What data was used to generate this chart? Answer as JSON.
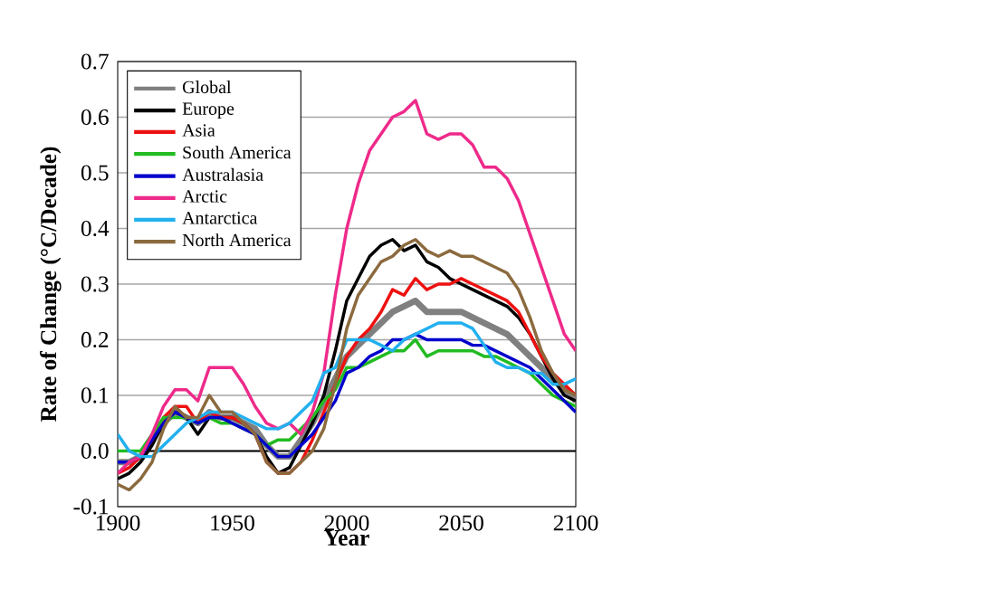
{
  "chart_data": {
    "type": "line",
    "xlabel": "Year",
    "ylabel": "Rate of Change (°C/Decade)",
    "x": [
      1900,
      1905,
      1910,
      1915,
      1920,
      1925,
      1930,
      1935,
      1940,
      1945,
      1950,
      1955,
      1960,
      1965,
      1970,
      1975,
      1980,
      1985,
      1990,
      1995,
      2000,
      2005,
      2010,
      2015,
      2020,
      2025,
      2030,
      2035,
      2040,
      2045,
      2050,
      2055,
      2060,
      2065,
      2070,
      2075,
      2080,
      2085,
      2090,
      2095,
      2100
    ],
    "series": [
      {
        "name": "Global",
        "color": "#808080",
        "values": [
          -0.02,
          -0.02,
          -0.01,
          0.02,
          0.05,
          0.07,
          0.06,
          0.05,
          0.07,
          0.06,
          0.06,
          0.05,
          0.04,
          0.01,
          -0.01,
          -0.01,
          0.02,
          0.05,
          0.09,
          0.13,
          0.17,
          0.19,
          0.21,
          0.23,
          0.25,
          0.26,
          0.27,
          0.25,
          0.25,
          0.25,
          0.25,
          0.24,
          0.23,
          0.22,
          0.21,
          0.19,
          0.17,
          0.15,
          0.13,
          0.11,
          0.09
        ]
      },
      {
        "name": "Europe",
        "color": "#000000",
        "values": [
          -0.05,
          -0.04,
          -0.02,
          0.01,
          0.05,
          0.07,
          0.06,
          0.03,
          0.06,
          0.06,
          0.06,
          0.05,
          0.03,
          -0.01,
          -0.04,
          -0.03,
          0.01,
          0.05,
          0.1,
          0.18,
          0.27,
          0.31,
          0.35,
          0.37,
          0.38,
          0.36,
          0.37,
          0.34,
          0.33,
          0.31,
          0.3,
          0.29,
          0.28,
          0.27,
          0.26,
          0.24,
          0.21,
          0.17,
          0.13,
          0.1,
          0.09
        ]
      },
      {
        "name": "Asia",
        "color": "#ee1111",
        "values": [
          -0.04,
          -0.03,
          -0.01,
          0.02,
          0.06,
          0.08,
          0.08,
          0.05,
          0.07,
          0.06,
          0.06,
          0.05,
          0.03,
          -0.02,
          -0.04,
          -0.04,
          -0.02,
          0.02,
          0.07,
          0.12,
          0.17,
          0.2,
          0.22,
          0.25,
          0.29,
          0.28,
          0.31,
          0.29,
          0.3,
          0.3,
          0.31,
          0.3,
          0.29,
          0.28,
          0.27,
          0.25,
          0.21,
          0.17,
          0.14,
          0.12,
          0.1
        ]
      },
      {
        "name": "South America",
        "color": "#22bb22",
        "values": [
          0.0,
          0.0,
          0.0,
          0.03,
          0.06,
          0.06,
          0.06,
          0.05,
          0.06,
          0.05,
          0.05,
          0.04,
          0.03,
          0.01,
          0.02,
          0.02,
          0.04,
          0.06,
          0.09,
          0.11,
          0.15,
          0.15,
          0.16,
          0.17,
          0.18,
          0.18,
          0.2,
          0.17,
          0.18,
          0.18,
          0.18,
          0.18,
          0.17,
          0.17,
          0.16,
          0.15,
          0.14,
          0.12,
          0.1,
          0.09,
          0.08
        ]
      },
      {
        "name": "Australasia",
        "color": "#0000cc",
        "values": [
          -0.02,
          -0.02,
          -0.01,
          0.02,
          0.05,
          0.07,
          0.06,
          0.05,
          0.06,
          0.06,
          0.05,
          0.04,
          0.03,
          0.01,
          -0.01,
          -0.01,
          0.01,
          0.03,
          0.06,
          0.09,
          0.14,
          0.15,
          0.17,
          0.18,
          0.2,
          0.2,
          0.21,
          0.2,
          0.2,
          0.2,
          0.2,
          0.19,
          0.19,
          0.18,
          0.17,
          0.16,
          0.15,
          0.13,
          0.11,
          0.09,
          0.07
        ]
      },
      {
        "name": "Arctic",
        "color": "#ee2a8a",
        "values": [
          -0.04,
          -0.02,
          -0.01,
          0.03,
          0.08,
          0.11,
          0.11,
          0.09,
          0.15,
          0.15,
          0.15,
          0.12,
          0.08,
          0.05,
          0.04,
          0.05,
          0.03,
          0.07,
          0.14,
          0.28,
          0.4,
          0.48,
          0.54,
          0.57,
          0.6,
          0.61,
          0.63,
          0.57,
          0.56,
          0.57,
          0.57,
          0.55,
          0.51,
          0.51,
          0.49,
          0.45,
          0.39,
          0.33,
          0.27,
          0.21,
          0.18
        ]
      },
      {
        "name": "Antarctica",
        "color": "#22b0ee",
        "values": [
          0.03,
          0.0,
          -0.01,
          -0.01,
          0.01,
          0.03,
          0.05,
          0.06,
          0.07,
          0.07,
          0.07,
          0.06,
          0.05,
          0.04,
          0.04,
          0.05,
          0.07,
          0.09,
          0.14,
          0.15,
          0.2,
          0.2,
          0.2,
          0.19,
          0.18,
          0.2,
          0.21,
          0.22,
          0.23,
          0.23,
          0.23,
          0.22,
          0.19,
          0.16,
          0.15,
          0.15,
          0.14,
          0.14,
          0.12,
          0.12,
          0.13
        ]
      },
      {
        "name": "North America",
        "color": "#8b6a3e",
        "values": [
          -0.06,
          -0.07,
          -0.05,
          -0.02,
          0.04,
          0.08,
          0.06,
          0.06,
          0.1,
          0.07,
          0.07,
          0.05,
          0.03,
          -0.02,
          -0.04,
          -0.04,
          -0.02,
          0.0,
          0.04,
          0.12,
          0.22,
          0.28,
          0.31,
          0.34,
          0.35,
          0.37,
          0.38,
          0.36,
          0.35,
          0.36,
          0.35,
          0.35,
          0.34,
          0.33,
          0.32,
          0.29,
          0.24,
          0.18,
          0.14,
          0.11,
          0.1
        ]
      }
    ],
    "xlim": [
      1900,
      2100
    ],
    "xticks": [
      1900,
      1950,
      2000,
      2050,
      2100
    ],
    "ylim": [
      -0.1,
      0.7
    ],
    "yticks": [
      {
        "value": -0.1,
        "label": "-0.1"
      },
      {
        "value": 0,
        "label": "0.0"
      },
      {
        "value": 0.1,
        "label": "0.1"
      },
      {
        "value": 0.2,
        "label": "0.2"
      },
      {
        "value": 0.3,
        "label": "0.3"
      },
      {
        "value": 0.4,
        "label": "0.4"
      },
      {
        "value": 0.5,
        "label": "0.5"
      },
      {
        "value": 0.6,
        "label": "0.6"
      },
      {
        "value": 0.7,
        "label": "0.7"
      }
    ],
    "ref_lines": [
      {
        "axis": "y",
        "value": 0,
        "color": "#000000"
      }
    ],
    "grid": "y",
    "legend": "top left",
    "marker": "none",
    "line_style": "solid"
  }
}
